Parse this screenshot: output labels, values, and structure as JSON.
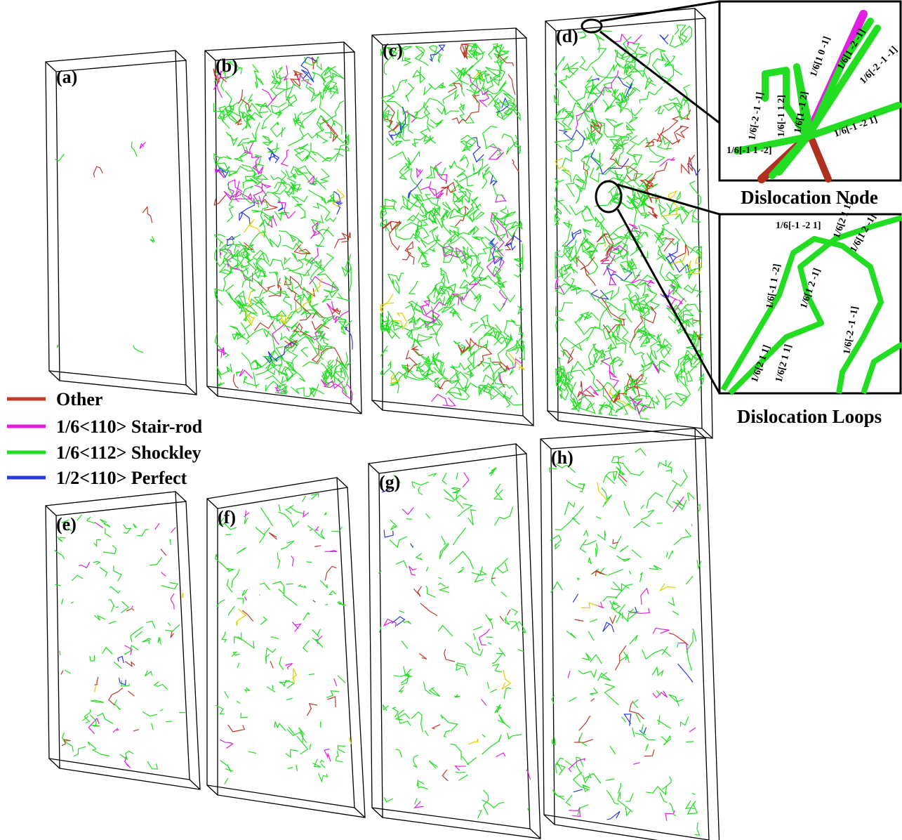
{
  "panels": [
    {
      "label": "(a)"
    },
    {
      "label": "(b)"
    },
    {
      "label": "(c)"
    },
    {
      "label": "(d)"
    },
    {
      "label": "(e)"
    },
    {
      "label": "(f)"
    },
    {
      "label": "(g)"
    },
    {
      "label": "(h)"
    }
  ],
  "legend": [
    {
      "name": "Other",
      "color": "#c0392b"
    },
    {
      "name": "1/6<110> Stair-rod",
      "color": "#e020e0"
    },
    {
      "name": "1/6<112> Shockley",
      "color": "#22dd22"
    },
    {
      "name": "1/2<110>  Perfect",
      "color": "#2a3be0"
    }
  ],
  "insets": [
    {
      "title": "Dislocation Node",
      "labels": [
        "1/6[-2 -1 -1]",
        "1/6[-1 1 2]",
        "1/6[1 -1 2]",
        "1/6[1 0 -1]",
        "1/6[1 -2 -1]",
        "1/6[-2 -1 -1]",
        "1/6[-1 -2 1]",
        "1/6[-1 1 -2]"
      ]
    },
    {
      "title": "Dislocation Loops",
      "labels": [
        "1/6[-1 -2 1]",
        "1/6[2 1 1]",
        "1/6[-1 1 -2]",
        "1/6[1 2 -1]",
        "1/6[1 2 -1]",
        "1/6[-2 -1 -1]",
        "1/6[2 1 1]",
        "1/6[2 1 1]"
      ]
    }
  ]
}
